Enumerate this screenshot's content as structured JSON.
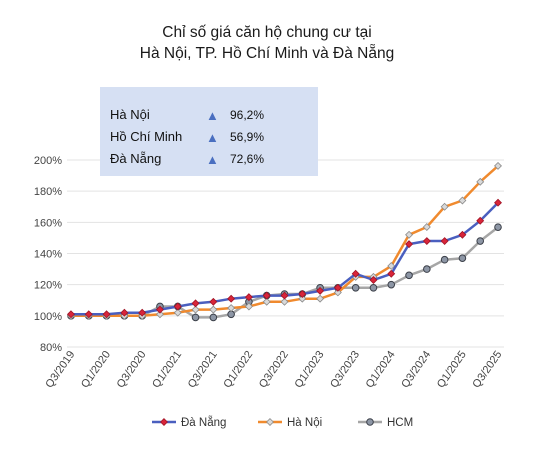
{
  "title_lines": [
    "Chỉ số giá căn hộ chung cư tại",
    "Hà Nội, TP. Hồ Chí Minh và Đà Nẵng"
  ],
  "summary": [
    {
      "label": "Hà Nội",
      "value": "96,2%"
    },
    {
      "label": "Hồ Chí Minh",
      "value": "56,9%"
    },
    {
      "label": "Đà Nẵng",
      "value": "72,6%"
    }
  ],
  "chart_data": {
    "type": "line",
    "title": "Chỉ số giá căn hộ chung cư tại Hà Nội, TP. Hồ Chí Minh và Đà Nẵng",
    "x": [
      "Q3/2019",
      "Q4/2019",
      "Q1/2020",
      "Q2/2020",
      "Q3/2020",
      "Q4/2020",
      "Q1/2021",
      "Q2/2021",
      "Q3/2021",
      "Q4/2021",
      "Q1/2022",
      "Q2/2022",
      "Q3/2022",
      "Q4/2022",
      "Q1/2023",
      "Q2/2023",
      "Q3/2023",
      "Q4/2023",
      "Q1/2024",
      "Q2/2024",
      "Q3/2024",
      "Q4/2024",
      "Q1/2025",
      "Q2/2025",
      "Q3/2025"
    ],
    "x_tick_labels": [
      "Q3/2019",
      "Q1/2020",
      "Q3/2020",
      "Q1/2021",
      "Q3/2021",
      "Q1/2022",
      "Q3/2022",
      "Q1/2023",
      "Q3/2023",
      "Q1/2024",
      "Q3/2024",
      "Q1/2025",
      "Q3/2025"
    ],
    "ylim": [
      80,
      200
    ],
    "y_ticks": [
      80,
      100,
      120,
      140,
      160,
      180,
      200
    ],
    "y_tick_labels": [
      "80%",
      "100%",
      "120%",
      "140%",
      "160%",
      "180%",
      "200%"
    ],
    "grid": "horizontal",
    "legend_position": "bottom",
    "series": [
      {
        "name": "Đà Nẵng",
        "color": "#4a5fbf",
        "marker": "diamond",
        "marker_color": "#d8253a",
        "values": [
          101,
          101,
          101,
          102,
          102,
          104,
          106,
          108,
          109,
          111,
          112,
          113,
          113,
          114,
          116,
          118,
          127,
          123,
          127,
          146,
          148,
          148,
          152,
          161,
          172.6
        ]
      },
      {
        "name": "Hà Nội",
        "color": "#f08a2e",
        "marker": "diamond",
        "marker_color": "#d9d9d9",
        "values": [
          100,
          100,
          100,
          100,
          100,
          101,
          102,
          104,
          104,
          105,
          106,
          109,
          109,
          111,
          111,
          115,
          125,
          125,
          132,
          152,
          157,
          170,
          174,
          186,
          196.2
        ]
      },
      {
        "name": "HCM",
        "color": "#a6a6a6",
        "marker": "circle",
        "marker_color": "#8d96a5",
        "values": [
          100,
          100,
          100,
          100,
          100,
          106,
          106,
          99,
          99,
          101,
          109,
          113,
          114,
          114,
          118,
          118,
          118,
          118,
          120,
          126,
          130,
          136,
          137,
          148,
          156.9
        ]
      }
    ]
  }
}
